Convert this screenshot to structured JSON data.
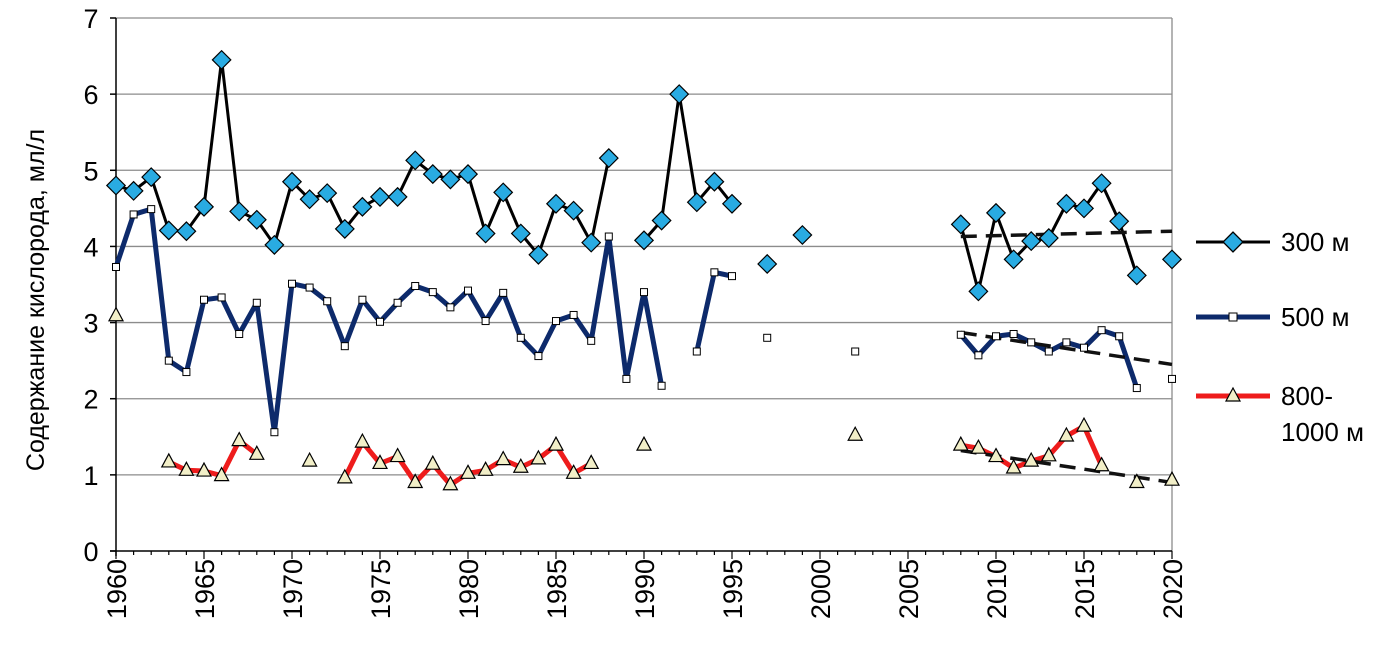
{
  "chart_data": {
    "type": "line",
    "ylabel": "Содержание кислорода, мл/л",
    "xlabel": "",
    "xlim": [
      1960,
      2020
    ],
    "ylim": [
      0,
      7
    ],
    "x_ticks": [
      "1960",
      "1965",
      "1970",
      "1975",
      "1980",
      "1985",
      "1990",
      "1995",
      "2000",
      "2005",
      "2010",
      "2015",
      "2020"
    ],
    "y_ticks": [
      "0",
      "1",
      "2",
      "3",
      "4",
      "5",
      "6",
      "7"
    ],
    "grid": "horizontal",
    "legend_position": "right",
    "series": [
      {
        "name": "300 м",
        "color": "#000000",
        "marker": "diamond",
        "marker_color": "#29ABE2",
        "line_width": 3,
        "points": [
          [
            1960,
            4.8
          ],
          [
            1961,
            4.73
          ],
          [
            1962,
            4.91
          ],
          [
            1963,
            4.21
          ],
          [
            1964,
            4.2
          ],
          [
            1965,
            4.52
          ],
          [
            1966,
            6.45
          ],
          [
            1967,
            4.46
          ],
          [
            1968,
            4.35
          ],
          [
            1969,
            4.02
          ],
          [
            1970,
            4.85
          ],
          [
            1971,
            4.62
          ],
          [
            1972,
            4.7
          ],
          [
            1973,
            4.23
          ],
          [
            1974,
            4.52
          ],
          [
            1975,
            4.65
          ],
          [
            1976,
            4.65
          ],
          [
            1977,
            5.13
          ],
          [
            1978,
            4.95
          ],
          [
            1979,
            4.88
          ],
          [
            1980,
            4.95
          ],
          [
            1981,
            4.17
          ],
          [
            1982,
            4.71
          ],
          [
            1983,
            4.17
          ],
          [
            1984,
            3.89
          ],
          [
            1985,
            4.56
          ],
          [
            1986,
            4.47
          ],
          [
            1987,
            4.05
          ],
          [
            1988,
            5.16
          ],
          [
            1990,
            4.08
          ],
          [
            1991,
            4.34
          ],
          [
            1992,
            6.0
          ],
          [
            1993,
            4.58
          ],
          [
            1994,
            4.85
          ],
          [
            1995,
            4.56
          ],
          [
            1997,
            3.77
          ],
          [
            1999,
            4.15
          ],
          [
            2008,
            4.29
          ],
          [
            2009,
            3.41
          ],
          [
            2010,
            4.44
          ],
          [
            2011,
            3.83
          ],
          [
            2012,
            4.07
          ],
          [
            2013,
            4.11
          ],
          [
            2014,
            4.56
          ],
          [
            2015,
            4.5
          ],
          [
            2016,
            4.83
          ],
          [
            2017,
            4.33
          ],
          [
            2018,
            3.62
          ],
          [
            2020,
            3.83
          ]
        ],
        "trend": [
          [
            2008,
            4.13
          ],
          [
            2020,
            4.2
          ]
        ]
      },
      {
        "name": "500 м",
        "color": "#0D2A6B",
        "marker": "square",
        "marker_color": "#ffffff",
        "line_width": 5,
        "points": [
          [
            1960,
            3.73
          ],
          [
            1961,
            4.42
          ],
          [
            1962,
            4.49
          ],
          [
            1963,
            2.5
          ],
          [
            1964,
            2.35
          ],
          [
            1965,
            3.3
          ],
          [
            1966,
            3.33
          ],
          [
            1967,
            2.85
          ],
          [
            1968,
            3.26
          ],
          [
            1969,
            1.56
          ],
          [
            1970,
            3.51
          ],
          [
            1971,
            3.46
          ],
          [
            1972,
            3.28
          ],
          [
            1973,
            2.69
          ],
          [
            1974,
            3.3
          ],
          [
            1975,
            3.01
          ],
          [
            1976,
            3.26
          ],
          [
            1977,
            3.48
          ],
          [
            1978,
            3.4
          ],
          [
            1979,
            3.2
          ],
          [
            1980,
            3.42
          ],
          [
            1981,
            3.02
          ],
          [
            1982,
            3.39
          ],
          [
            1983,
            2.8
          ],
          [
            1984,
            2.56
          ],
          [
            1985,
            3.02
          ],
          [
            1986,
            3.1
          ],
          [
            1987,
            2.76
          ],
          [
            1988,
            4.13
          ],
          [
            1989,
            2.26
          ],
          [
            1990,
            3.4
          ],
          [
            1991,
            2.17
          ],
          [
            1993,
            2.62
          ],
          [
            1994,
            3.66
          ],
          [
            1995,
            3.61
          ],
          [
            1997,
            2.8
          ],
          [
            2002,
            2.62
          ],
          [
            2008,
            2.84
          ],
          [
            2009,
            2.57
          ],
          [
            2010,
            2.82
          ],
          [
            2011,
            2.85
          ],
          [
            2012,
            2.74
          ],
          [
            2013,
            2.62
          ],
          [
            2014,
            2.74
          ],
          [
            2015,
            2.67
          ],
          [
            2016,
            2.9
          ],
          [
            2017,
            2.82
          ],
          [
            2018,
            2.14
          ],
          [
            2020,
            2.26
          ]
        ],
        "trend": [
          [
            2008,
            2.87
          ],
          [
            2020,
            2.45
          ]
        ]
      },
      {
        "name": "800-1000 м",
        "color": "#EE1C1C",
        "marker": "triangle",
        "marker_color": "#F2EFC8",
        "line_width": 5,
        "points": [
          [
            1960,
            3.09
          ],
          [
            1963,
            1.17
          ],
          [
            1964,
            1.06
          ],
          [
            1965,
            1.05
          ],
          [
            1966,
            0.99
          ],
          [
            1967,
            1.45
          ],
          [
            1968,
            1.27
          ],
          [
            1971,
            1.18
          ],
          [
            1973,
            0.96
          ],
          [
            1974,
            1.43
          ],
          [
            1975,
            1.15
          ],
          [
            1976,
            1.24
          ],
          [
            1977,
            0.9
          ],
          [
            1978,
            1.14
          ],
          [
            1979,
            0.87
          ],
          [
            1980,
            1.02
          ],
          [
            1981,
            1.06
          ],
          [
            1982,
            1.2
          ],
          [
            1983,
            1.1
          ],
          [
            1984,
            1.21
          ],
          [
            1985,
            1.39
          ],
          [
            1986,
            1.02
          ],
          [
            1987,
            1.15
          ],
          [
            1990,
            1.39
          ],
          [
            2002,
            1.52
          ],
          [
            2008,
            1.39
          ],
          [
            2009,
            1.35
          ],
          [
            2010,
            1.24
          ],
          [
            2011,
            1.09
          ],
          [
            2012,
            1.18
          ],
          [
            2013,
            1.25
          ],
          [
            2014,
            1.51
          ],
          [
            2015,
            1.64
          ],
          [
            2016,
            1.12
          ],
          [
            2018,
            0.9
          ],
          [
            2020,
            0.93
          ]
        ],
        "trend": [
          [
            2008,
            1.32
          ],
          [
            2020,
            0.9
          ]
        ]
      }
    ]
  },
  "legend": {
    "items": [
      {
        "label": "300 м"
      },
      {
        "label": "500 м"
      },
      {
        "label_line1": "800-",
        "label_line2": "1000 м"
      }
    ]
  }
}
